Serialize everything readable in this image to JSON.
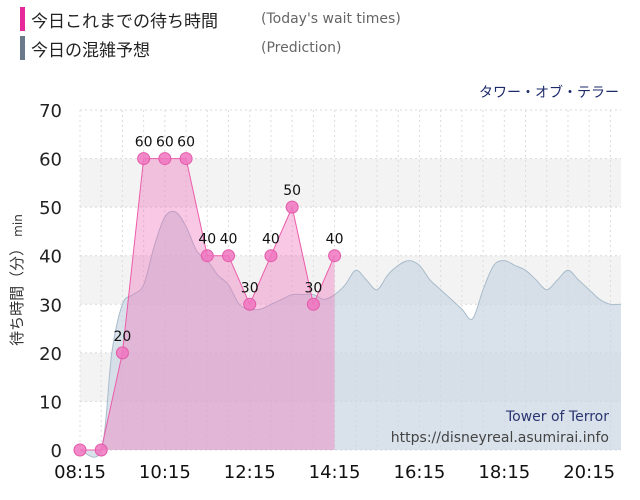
{
  "legend": {
    "today": {
      "label": "今日これまでの待ち時間",
      "sub": "(Today's wait times)",
      "color": "#e8299a"
    },
    "prediction": {
      "label": "今日の混雑予想",
      "sub": "(Prediction)",
      "color": "#6b7a8a"
    }
  },
  "chart_data": {
    "type": "area",
    "title": "タワー・オブ・テラー",
    "attraction_en": "Tower of Terror",
    "source": "https://disneyreal.asumirai.info",
    "ylabel_main": "待ち時間（分）",
    "ylabel_unit": "min",
    "ylim": [
      0,
      70
    ],
    "yticks": [
      0,
      10,
      20,
      30,
      40,
      50,
      60,
      70
    ],
    "xlim": [
      "08:15",
      "21:00"
    ],
    "xticks": [
      "08:15",
      "10:15",
      "12:15",
      "14:15",
      "16:15",
      "18:15",
      "20:15"
    ],
    "grid": true,
    "series": [
      {
        "name": "今日これまでの待ち時間",
        "color": "#ee6bb4",
        "x": [
          "08:15",
          "08:45",
          "09:15",
          "09:45",
          "10:15",
          "10:45",
          "11:15",
          "11:45",
          "12:15",
          "12:45",
          "13:15",
          "13:45",
          "14:15"
        ],
        "values": [
          0,
          0,
          20,
          60,
          60,
          60,
          40,
          40,
          30,
          40,
          50,
          30,
          40
        ]
      },
      {
        "name": "今日の混雑予想",
        "color": "#aebfcf",
        "x": [
          "08:15",
          "08:45",
          "09:00",
          "09:15",
          "09:30",
          "09:45",
          "10:00",
          "10:15",
          "10:30",
          "10:45",
          "11:00",
          "11:15",
          "11:30",
          "11:45",
          "12:00",
          "12:15",
          "12:30",
          "12:45",
          "13:00",
          "13:15",
          "13:30",
          "13:45",
          "14:00",
          "14:15",
          "14:30",
          "14:45",
          "15:00",
          "15:15",
          "15:30",
          "15:45",
          "16:00",
          "16:15",
          "16:30",
          "16:45",
          "17:00",
          "17:15",
          "17:30",
          "17:45",
          "18:00",
          "18:15",
          "18:30",
          "18:45",
          "19:00",
          "19:15",
          "19:30",
          "19:45",
          "20:00",
          "20:15",
          "20:30",
          "20:45",
          "21:00"
        ],
        "values": [
          0,
          0,
          20,
          30,
          32,
          34,
          42,
          48,
          49,
          46,
          41,
          39,
          36,
          34,
          30,
          29,
          29,
          30,
          31,
          32,
          32,
          32,
          31,
          32,
          34,
          37,
          35,
          33,
          36,
          38,
          39,
          38,
          35,
          33,
          31,
          29,
          27,
          33,
          38,
          39,
          38,
          37,
          35,
          33,
          35,
          37,
          35,
          33,
          31,
          30,
          30
        ]
      }
    ],
    "data_labels": [
      {
        "x": "09:15",
        "text": "20"
      },
      {
        "x": "09:45",
        "text": "60"
      },
      {
        "x": "10:15",
        "text": "60"
      },
      {
        "x": "10:45",
        "text": "60"
      },
      {
        "x": "11:15",
        "text": "40"
      },
      {
        "x": "11:45",
        "text": "40"
      },
      {
        "x": "12:15",
        "text": "30"
      },
      {
        "x": "12:45",
        "text": "40"
      },
      {
        "x": "13:15",
        "text": "50"
      },
      {
        "x": "13:45",
        "text": "30"
      },
      {
        "x": "14:15",
        "text": "40"
      }
    ]
  }
}
